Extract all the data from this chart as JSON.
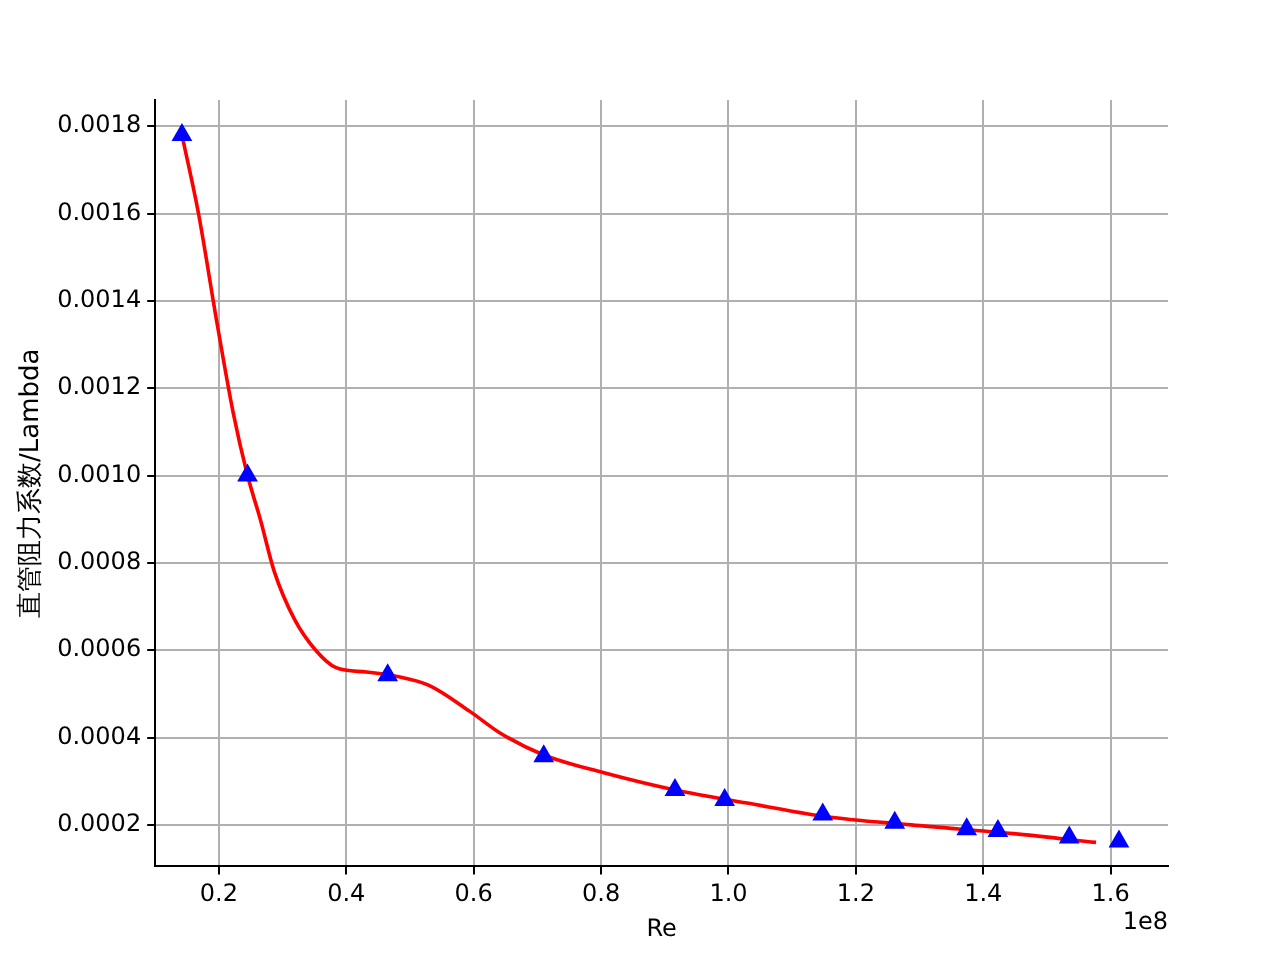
{
  "chart_data": {
    "type": "line",
    "xlabel": "Re",
    "ylabel": "直管阻力系数/Lambda",
    "annotations": [
      "1e8"
    ],
    "xlim": [
      0.1,
      1.69
    ],
    "xticks": [
      {
        "value": 0.2,
        "label": "0.2"
      },
      {
        "value": 0.4,
        "label": "0.4"
      },
      {
        "value": 0.6,
        "label": "0.6"
      },
      {
        "value": 0.8,
        "label": "0.8"
      },
      {
        "value": 1.0,
        "label": "1.0"
      },
      {
        "value": 1.2,
        "label": "1.2"
      },
      {
        "value": 1.4,
        "label": "1.4"
      },
      {
        "value": 1.6,
        "label": "1.6"
      }
    ],
    "ylim": [
      0.000105,
      0.00186
    ],
    "yticks": [
      0.0002,
      0.0004,
      0.0006,
      0.0008,
      {
        "value": 0.001,
        "label": "0.0010"
      },
      0.0012,
      0.0014,
      0.0016,
      0.0018
    ],
    "grid": true,
    "legend": false,
    "series": [
      {
        "color": "#ff0000",
        "marker": "none",
        "line_style": "solid",
        "x": [
          0.142,
          0.168,
          0.197,
          0.223,
          0.245,
          0.265,
          0.287,
          0.319,
          0.352,
          0.384,
          0.432,
          0.48,
          0.529,
          0.594,
          0.642,
          0.71,
          0.803,
          0.916,
          1.029,
          1.148,
          1.287,
          1.448,
          1.577
        ],
        "values": [
          0.00178,
          0.0016,
          0.00135,
          0.00114,
          0.001,
          0.0009,
          0.00078,
          0.00067,
          0.0006,
          0.00056,
          0.00055,
          0.00054,
          0.00052,
          0.00046,
          0.00041,
          0.00036,
          0.00032,
          0.00028,
          0.00025,
          0.00022,
          0.0002,
          0.00018,
          0.00016
        ]
      },
      {
        "type": "scatter",
        "color": "#0000ff",
        "marker": "triangle",
        "x": [
          0.142,
          0.245,
          0.465,
          0.71,
          0.916,
          0.994,
          1.148,
          1.261,
          1.374,
          1.423,
          1.535,
          1.613
        ],
        "values": [
          0.00178,
          0.001,
          0.000543,
          0.000357,
          0.00028,
          0.000257,
          0.000224,
          0.000205,
          0.00019,
          0.000186,
          0.000171,
          0.000162
        ]
      }
    ]
  }
}
